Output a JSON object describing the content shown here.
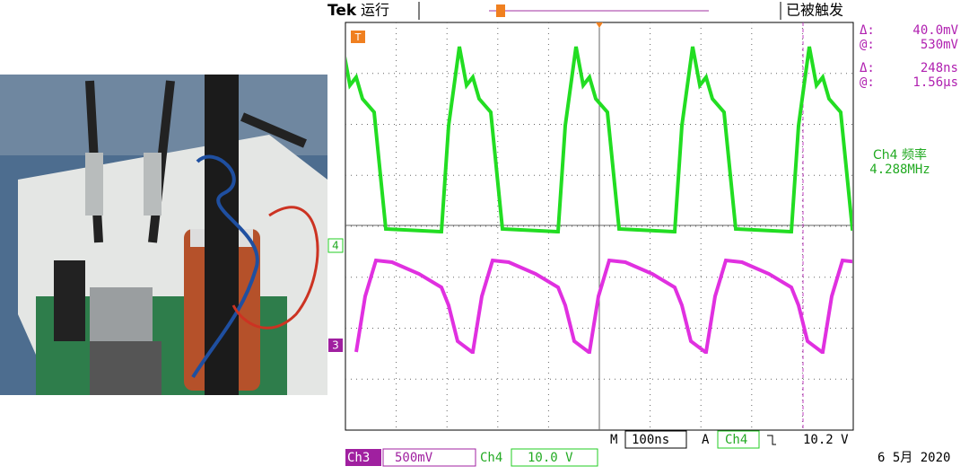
{
  "header": {
    "brand": "Tek",
    "state": "运行",
    "trigger_status": "已被触发"
  },
  "markers": {
    "trigger": "T",
    "ch4": "4",
    "ch3": "3"
  },
  "readouts": [
    {
      "symbol": "Δ:",
      "value": "40.0mV"
    },
    {
      "symbol": "@:",
      "value": "530mV"
    },
    {
      "symbol": "Δ:",
      "value": "248ns"
    },
    {
      "symbol": "@:",
      "value": "1.56µs"
    }
  ],
  "measurement": {
    "label": "Ch4 频率",
    "value": "4.288MHz"
  },
  "timebase": {
    "m_label": "M",
    "m_value": "100ns",
    "a_label": "A",
    "a_channel": "Ch4",
    "a_level": "10.2 V"
  },
  "channels": [
    {
      "name": "Ch3",
      "scale": "500mV"
    },
    {
      "name": "Ch4",
      "scale": "10.0 V"
    }
  ],
  "date": "6 5月 2020"
}
